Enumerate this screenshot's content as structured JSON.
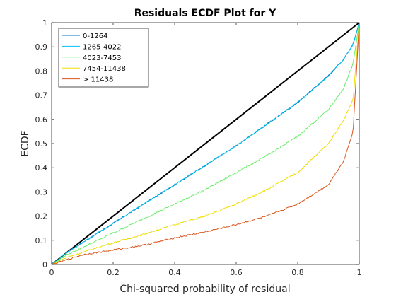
{
  "chart_data": {
    "type": "line",
    "title": "Residuals ECDF Plot for Y",
    "xlabel": "Chi-squared probability of residual",
    "ylabel": "ECDF",
    "xlim": [
      0,
      1
    ],
    "ylim": [
      0,
      1
    ],
    "xticks": [
      "0",
      "0.2",
      "0.4",
      "0.6",
      "0.8",
      "1"
    ],
    "yticks": [
      "0",
      "0.1",
      "0.2",
      "0.3",
      "0.4",
      "0.5",
      "0.6",
      "0.7",
      "0.8",
      "0.9",
      "1"
    ],
    "grid": false,
    "legend_position": "top-left",
    "reference_line": {
      "x": [
        0,
        1
      ],
      "y": [
        0,
        1
      ],
      "color": "#000000"
    },
    "series": [
      {
        "name": "0-1264",
        "color": "#0072BD",
        "x": [
          0,
          0.05,
          0.1,
          0.2,
          0.3,
          0.4,
          0.5,
          0.6,
          0.7,
          0.8,
          0.9,
          0.95,
          0.98,
          1
        ],
        "y": [
          0,
          0.05,
          0.09,
          0.17,
          0.25,
          0.33,
          0.41,
          0.49,
          0.58,
          0.67,
          0.78,
          0.85,
          0.91,
          1
        ]
      },
      {
        "name": "1265-4022",
        "color": "#00BFF0",
        "x": [
          0,
          0.05,
          0.1,
          0.2,
          0.3,
          0.4,
          0.5,
          0.6,
          0.7,
          0.8,
          0.9,
          0.95,
          0.98,
          1
        ],
        "y": [
          0,
          0.05,
          0.09,
          0.17,
          0.25,
          0.33,
          0.41,
          0.49,
          0.58,
          0.67,
          0.78,
          0.85,
          0.91,
          1
        ]
      },
      {
        "name": "4023-7453",
        "color": "#66EE66",
        "x": [
          0,
          0.05,
          0.1,
          0.2,
          0.3,
          0.4,
          0.5,
          0.6,
          0.7,
          0.8,
          0.9,
          0.95,
          0.98,
          1
        ],
        "y": [
          0,
          0.04,
          0.07,
          0.13,
          0.19,
          0.25,
          0.31,
          0.38,
          0.45,
          0.53,
          0.64,
          0.73,
          0.83,
          1
        ]
      },
      {
        "name": "7454-11438",
        "color": "#EEDD00",
        "x": [
          0,
          0.05,
          0.1,
          0.2,
          0.3,
          0.4,
          0.5,
          0.6,
          0.7,
          0.8,
          0.9,
          0.95,
          0.98,
          1
        ],
        "y": [
          0,
          0.03,
          0.05,
          0.09,
          0.125,
          0.165,
          0.2,
          0.25,
          0.31,
          0.38,
          0.5,
          0.6,
          0.68,
          1
        ]
      },
      {
        "name": "> 11438",
        "color": "#D95319",
        "x": [
          0,
          0.05,
          0.1,
          0.2,
          0.3,
          0.4,
          0.5,
          0.6,
          0.7,
          0.8,
          0.9,
          0.95,
          0.98,
          1
        ],
        "y": [
          0,
          0.02,
          0.04,
          0.06,
          0.08,
          0.11,
          0.135,
          0.165,
          0.2,
          0.25,
          0.33,
          0.43,
          0.55,
          1
        ]
      }
    ]
  }
}
